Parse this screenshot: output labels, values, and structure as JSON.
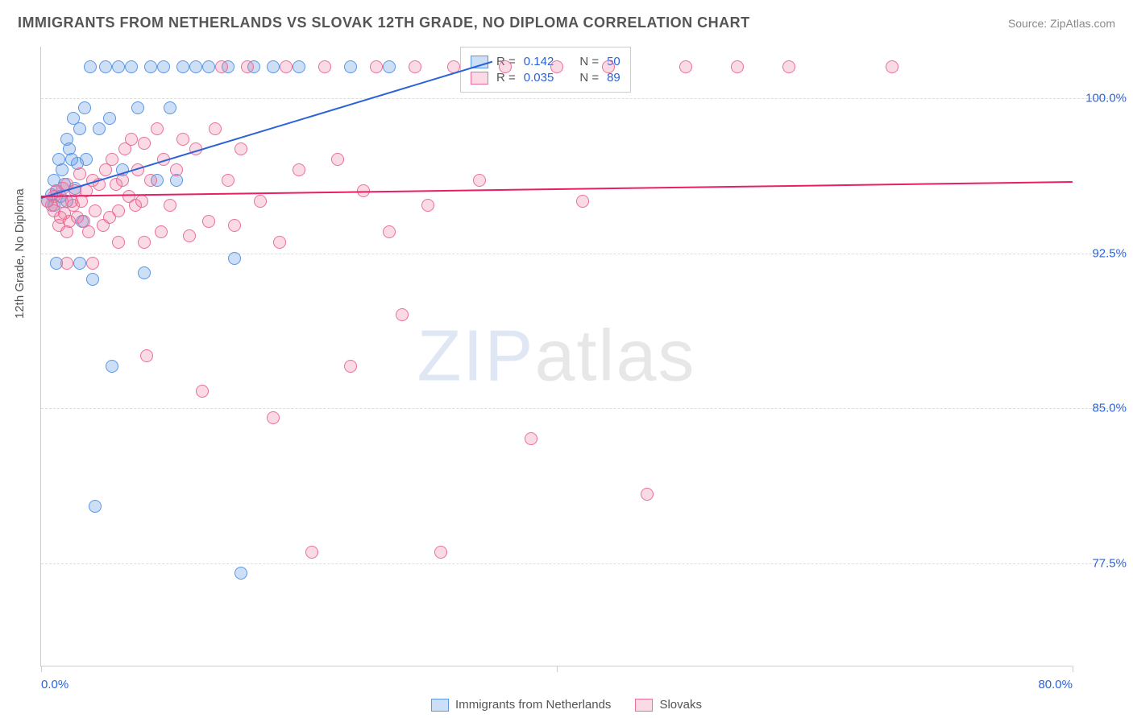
{
  "header": {
    "title": "IMMIGRANTS FROM NETHERLANDS VS SLOVAK 12TH GRADE, NO DIPLOMA CORRELATION CHART",
    "source_label": "Source: ZipAtlas.com"
  },
  "chart": {
    "type": "scatter",
    "ylabel": "12th Grade, No Diploma",
    "xlim": [
      0,
      80
    ],
    "ylim": [
      72.5,
      102.5
    ],
    "xticks": [
      0,
      40,
      80
    ],
    "xtick_labels": [
      "0.0%",
      "",
      "80.0%"
    ],
    "yticks": [
      77.5,
      85.0,
      92.5,
      100.0
    ],
    "ytick_labels": [
      "77.5%",
      "85.0%",
      "92.5%",
      "100.0%"
    ],
    "background_color": "#ffffff",
    "grid_color": "#dddddd",
    "axis_color": "#cccccc",
    "tick_label_color": "#2b62d9",
    "marker_radius": 8,
    "marker_border_width": 1.5,
    "series": [
      {
        "key": "netherlands",
        "label": "Immigrants from Netherlands",
        "fill_color": "rgba(90,150,230,0.30)",
        "border_color": "#5a96e6",
        "trend_color": "#2b62d9",
        "R": 0.142,
        "N": 50,
        "trend": {
          "x1": 0,
          "y1": 95.2,
          "x2": 35,
          "y2": 101.8
        },
        "points": [
          [
            0.5,
            95.0
          ],
          [
            0.8,
            95.3
          ],
          [
            1.0,
            96.0
          ],
          [
            1.0,
            94.8
          ],
          [
            1.2,
            95.5
          ],
          [
            1.4,
            97.0
          ],
          [
            1.5,
            95.2
          ],
          [
            1.6,
            96.5
          ],
          [
            1.8,
            95.8
          ],
          [
            2.0,
            98.0
          ],
          [
            2.0,
            95.0
          ],
          [
            2.2,
            97.5
          ],
          [
            2.4,
            97.0
          ],
          [
            2.5,
            99.0
          ],
          [
            2.6,
            95.6
          ],
          [
            2.8,
            96.8
          ],
          [
            3.0,
            98.5
          ],
          [
            3.0,
            92.0
          ],
          [
            3.2,
            94.0
          ],
          [
            3.4,
            99.5
          ],
          [
            3.5,
            97.0
          ],
          [
            3.8,
            101.5
          ],
          [
            4.0,
            91.2
          ],
          [
            4.2,
            80.2
          ],
          [
            4.5,
            98.5
          ],
          [
            5.0,
            101.5
          ],
          [
            5.3,
            99.0
          ],
          [
            5.5,
            87.0
          ],
          [
            6.0,
            101.5
          ],
          [
            6.3,
            96.5
          ],
          [
            7.0,
            101.5
          ],
          [
            7.5,
            99.5
          ],
          [
            8.0,
            91.5
          ],
          [
            8.5,
            101.5
          ],
          [
            9.0,
            96.0
          ],
          [
            9.5,
            101.5
          ],
          [
            10.0,
            99.5
          ],
          [
            10.5,
            96.0
          ],
          [
            11.0,
            101.5
          ],
          [
            12.0,
            101.5
          ],
          [
            13.0,
            101.5
          ],
          [
            14.5,
            101.5
          ],
          [
            15.0,
            92.2
          ],
          [
            15.5,
            77.0
          ],
          [
            16.5,
            101.5
          ],
          [
            18.0,
            101.5
          ],
          [
            20.0,
            101.5
          ],
          [
            24.0,
            101.5
          ],
          [
            27.0,
            101.5
          ],
          [
            1.2,
            92.0
          ]
        ]
      },
      {
        "key": "slovaks",
        "label": "Slovaks",
        "fill_color": "rgba(235,110,150,0.25)",
        "border_color": "#eb6e96",
        "trend_color": "#e91e63",
        "R": 0.035,
        "N": 89,
        "trend": {
          "x1": 0,
          "y1": 95.3,
          "x2": 80,
          "y2": 96.0
        },
        "points": [
          [
            0.5,
            95.0
          ],
          [
            0.8,
            94.8
          ],
          [
            1.0,
            95.2
          ],
          [
            1.0,
            94.5
          ],
          [
            1.2,
            95.5
          ],
          [
            1.4,
            93.8
          ],
          [
            1.5,
            94.2
          ],
          [
            1.6,
            95.0
          ],
          [
            1.7,
            95.6
          ],
          [
            1.8,
            94.4
          ],
          [
            2.0,
            95.8
          ],
          [
            2.0,
            93.5
          ],
          [
            2.2,
            94.0
          ],
          [
            2.4,
            95.0
          ],
          [
            2.5,
            94.8
          ],
          [
            2.6,
            95.5
          ],
          [
            2.8,
            94.2
          ],
          [
            3.0,
            96.3
          ],
          [
            3.1,
            95.0
          ],
          [
            3.3,
            94.0
          ],
          [
            3.5,
            95.5
          ],
          [
            3.7,
            93.5
          ],
          [
            4.0,
            96.0
          ],
          [
            4.2,
            94.5
          ],
          [
            4.5,
            95.8
          ],
          [
            4.8,
            93.8
          ],
          [
            5.0,
            96.5
          ],
          [
            5.3,
            94.2
          ],
          [
            5.5,
            97.0
          ],
          [
            5.8,
            95.8
          ],
          [
            6.0,
            94.5
          ],
          [
            6.3,
            96.0
          ],
          [
            6.5,
            97.5
          ],
          [
            6.8,
            95.2
          ],
          [
            7.0,
            98.0
          ],
          [
            7.3,
            94.8
          ],
          [
            7.5,
            96.5
          ],
          [
            7.8,
            95.0
          ],
          [
            8.0,
            97.8
          ],
          [
            8.2,
            87.5
          ],
          [
            8.5,
            96.0
          ],
          [
            9.0,
            98.5
          ],
          [
            9.3,
            93.5
          ],
          [
            9.5,
            97.0
          ],
          [
            10.0,
            94.8
          ],
          [
            10.5,
            96.5
          ],
          [
            11.0,
            98.0
          ],
          [
            11.5,
            93.3
          ],
          [
            12.0,
            97.5
          ],
          [
            12.5,
            85.8
          ],
          [
            13.0,
            94.0
          ],
          [
            13.5,
            98.5
          ],
          [
            14.0,
            101.5
          ],
          [
            14.5,
            96.0
          ],
          [
            15.0,
            93.8
          ],
          [
            15.5,
            97.5
          ],
          [
            16.0,
            101.5
          ],
          [
            17.0,
            95.0
          ],
          [
            18.0,
            84.5
          ],
          [
            18.5,
            93.0
          ],
          [
            19.0,
            101.5
          ],
          [
            20.0,
            96.5
          ],
          [
            21.0,
            78.0
          ],
          [
            22.0,
            101.5
          ],
          [
            23.0,
            97.0
          ],
          [
            24.0,
            87.0
          ],
          [
            25.0,
            95.5
          ],
          [
            26.0,
            101.5
          ],
          [
            27.0,
            93.5
          ],
          [
            28.0,
            89.5
          ],
          [
            29.0,
            101.5
          ],
          [
            30.0,
            94.8
          ],
          [
            31.0,
            78.0
          ],
          [
            32.0,
            101.5
          ],
          [
            34.0,
            96.0
          ],
          [
            36.0,
            101.5
          ],
          [
            38.0,
            83.5
          ],
          [
            40.0,
            101.5
          ],
          [
            42.0,
            95.0
          ],
          [
            44.0,
            101.5
          ],
          [
            47.0,
            80.8
          ],
          [
            50.0,
            101.5
          ],
          [
            54.0,
            101.5
          ],
          [
            58.0,
            101.5
          ],
          [
            66.0,
            101.5
          ],
          [
            2.0,
            92.0
          ],
          [
            4.0,
            92.0
          ],
          [
            6.0,
            93.0
          ],
          [
            8.0,
            93.0
          ]
        ]
      }
    ],
    "watermark": {
      "part1": "ZIP",
      "part2": "atlas"
    },
    "stats_legend": {
      "R_label": "R  =",
      "N_label": "N  =",
      "rows": [
        {
          "series": "netherlands",
          "R": "0.142",
          "N": "50"
        },
        {
          "series": "slovaks",
          "R": "0.035",
          "N": "89"
        }
      ]
    }
  }
}
